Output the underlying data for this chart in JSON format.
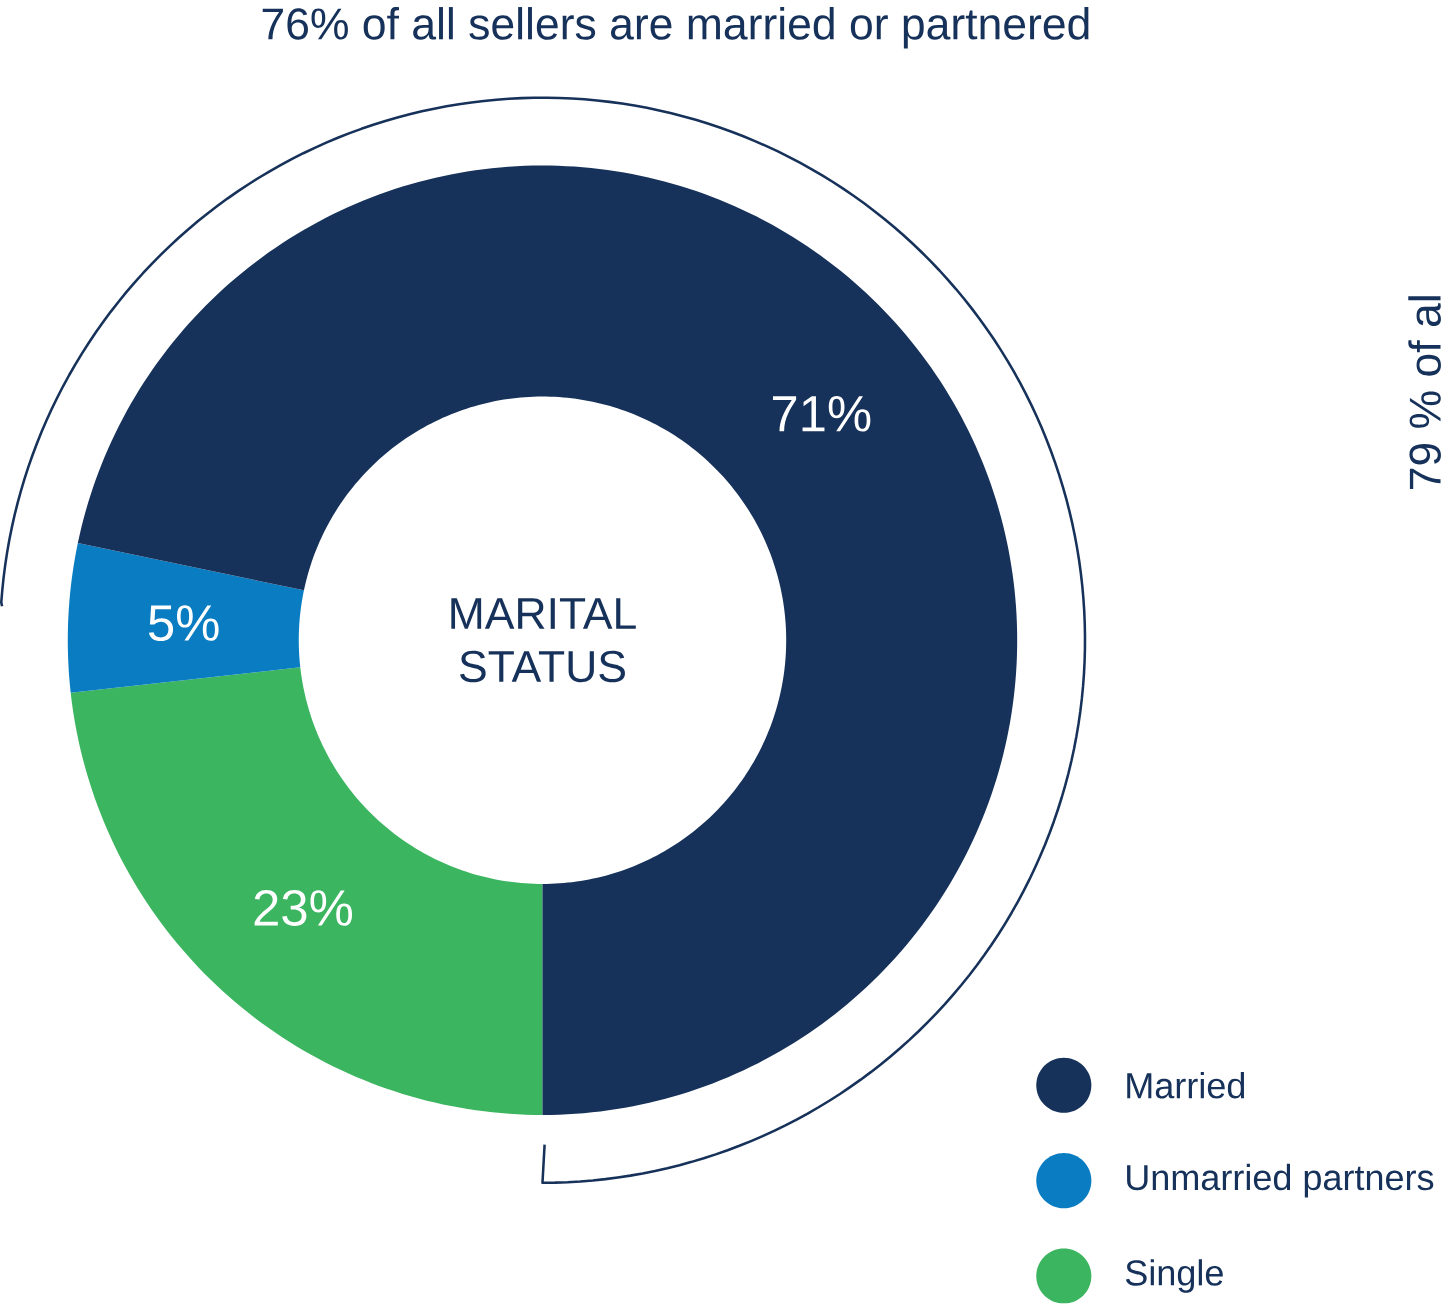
{
  "chart_data": {
    "type": "donut",
    "title": "MARITAL STATUS",
    "categories": [
      "Married",
      "Unmarried partners",
      "Single"
    ],
    "values": [
      71,
      5,
      23
    ],
    "colors": [
      "#17325a",
      "#0a7dc2",
      "#3bb55f"
    ],
    "value_labels": [
      "71%",
      "5%",
      "23%"
    ],
    "legend": "bottom right",
    "annotations": [
      "76% of all sellers are married or partnered",
      "79 % of al"
    ]
  }
}
